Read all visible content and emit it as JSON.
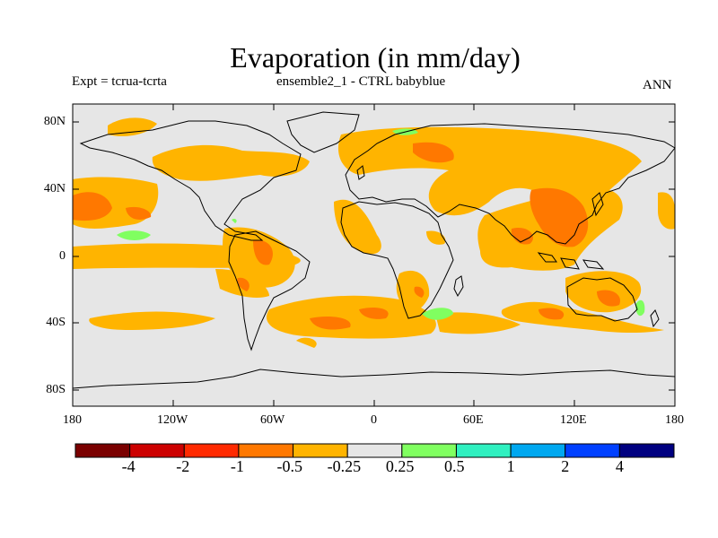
{
  "title": "Evaporation (in mm/day)",
  "subtitle_left": "Expt = tcrua-tcrta",
  "subtitle_center": "ensemble2_1 - CTRL babyblue",
  "subtitle_right": "ANN",
  "map": {
    "longitude_ticks": [
      "180",
      "120W",
      "60W",
      "0",
      "60E",
      "120E",
      "180"
    ],
    "latitude_ticks": [
      "80N",
      "40N",
      "0",
      "40S",
      "80S"
    ],
    "background_color": "#e6e6e6"
  },
  "colorbar": {
    "labels": [
      "-4",
      "-2",
      "-1",
      "-0.5",
      "-0.25",
      "0.25",
      "0.5",
      "1",
      "2",
      "4"
    ],
    "colors": [
      "#7a0000",
      "#cc0000",
      "#ff2a00",
      "#ff7800",
      "#ffb400",
      "#e6e6e6",
      "#80ff60",
      "#30f0c0",
      "#00a8f0",
      "#0040ff",
      "#000080"
    ]
  }
}
